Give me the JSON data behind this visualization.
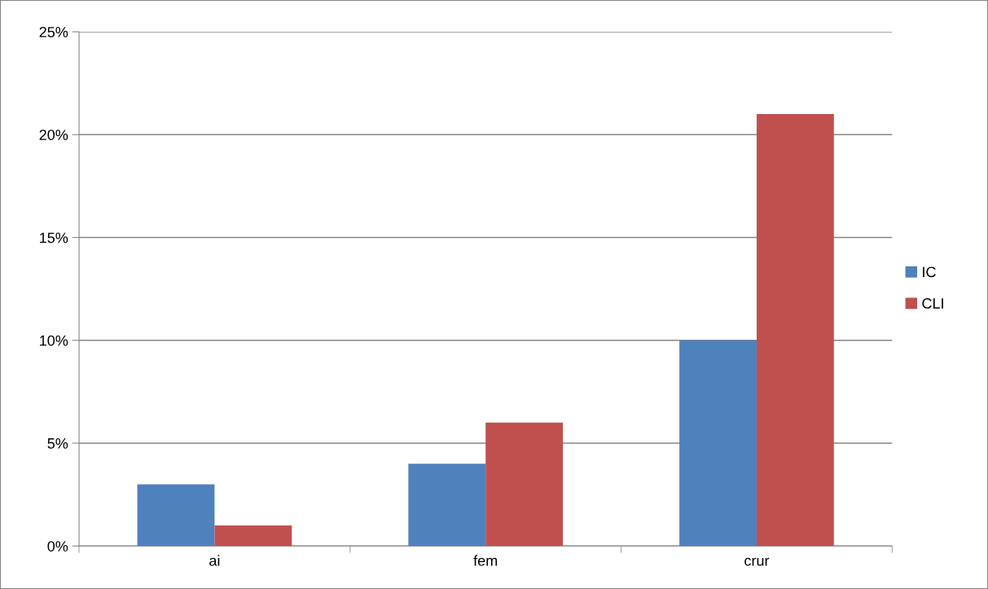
{
  "chart_data": {
    "type": "bar",
    "categories": [
      "ai",
      "fem",
      "crur"
    ],
    "series": [
      {
        "name": "IC",
        "color": "#4f81bd",
        "values": [
          3,
          4,
          10
        ]
      },
      {
        "name": "CLI",
        "color": "#c0504d",
        "values": [
          1,
          6,
          21
        ]
      }
    ],
    "ylim": [
      0,
      25
    ],
    "yticks": [
      {
        "value": 0,
        "label": "0%"
      },
      {
        "value": 5,
        "label": "5%"
      },
      {
        "value": 10,
        "label": "10%"
      },
      {
        "value": 15,
        "label": "15%"
      },
      {
        "value": 20,
        "label": "20%"
      },
      {
        "value": 25,
        "label": "25%"
      }
    ],
    "grid": "y",
    "legend": "right"
  }
}
